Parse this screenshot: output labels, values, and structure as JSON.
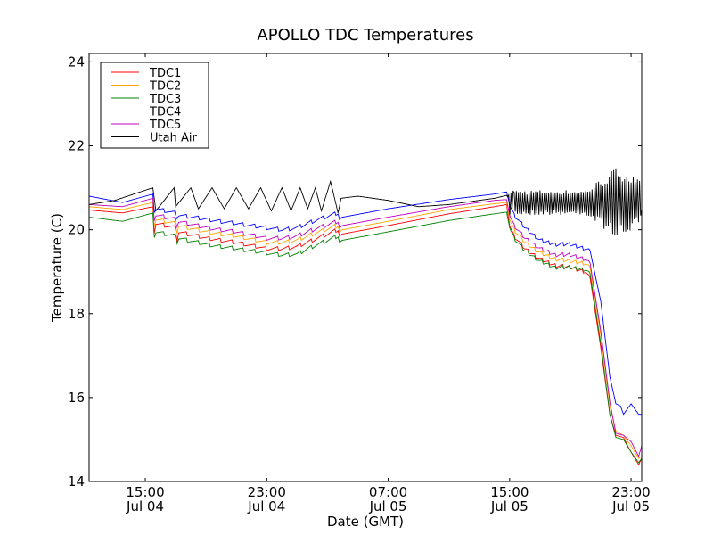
{
  "chart_data": {
    "type": "line",
    "title": "APOLLO TDC Temperatures",
    "xlabel": "Date (GMT)",
    "ylabel": "Temperature (C)",
    "x_units": "hours since Jul 04 00:00 GMT",
    "xlim": [
      11.3,
      47.7
    ],
    "ylim": [
      14,
      24.2
    ],
    "grid": false,
    "legend_position": "top-left",
    "xticks": [
      {
        "value": 15,
        "line1": "15:00",
        "line2": "Jul 04"
      },
      {
        "value": 23,
        "line1": "23:00",
        "line2": "Jul 04"
      },
      {
        "value": 31,
        "line1": "07:00",
        "line2": "Jul 05"
      },
      {
        "value": 39,
        "line1": "15:00",
        "line2": "Jul 05"
      },
      {
        "value": 47,
        "line1": "23:00",
        "line2": "Jul 05"
      }
    ],
    "yticks": [
      {
        "value": 14,
        "label": "14"
      },
      {
        "value": 16,
        "label": "16"
      },
      {
        "value": 18,
        "label": "18"
      },
      {
        "value": 20,
        "label": "20"
      },
      {
        "value": 22,
        "label": "22"
      },
      {
        "value": 24,
        "label": "24"
      }
    ],
    "series": [
      {
        "name": "TDC1",
        "color": "#ff0000",
        "offset": -0.12,
        "x": [
          11.3,
          13.5,
          15.5,
          15.6,
          15.7,
          17,
          17.1,
          17.2,
          19,
          21,
          23,
          24,
          25,
          26,
          27.7,
          27.8,
          28,
          31,
          35,
          38,
          38.8,
          39,
          39.3,
          40,
          41,
          42,
          43,
          44,
          44.3,
          45,
          45.6,
          46,
          46.5,
          47,
          47.5,
          47.7
        ],
        "y": [
          20.47,
          20.4,
          20.55,
          19.95,
          20.15,
          20.05,
          19.75,
          19.95,
          19.8,
          19.7,
          19.55,
          19.55,
          19.6,
          19.75,
          20.0,
          19.85,
          19.9,
          20.1,
          20.38,
          20.55,
          20.6,
          20.1,
          19.85,
          19.55,
          19.3,
          19.15,
          19.1,
          19.0,
          18.85,
          17.2,
          15.6,
          15.1,
          15.05,
          14.7,
          14.4,
          14.55
        ]
      },
      {
        "name": "TDC2",
        "color": "#ffa500",
        "offset": 0,
        "x": [
          11.3,
          13.5,
          15.5,
          15.6,
          15.7,
          17,
          17.1,
          17.2,
          19,
          21,
          23,
          24,
          25,
          26,
          27.7,
          27.8,
          28,
          31,
          35,
          38,
          38.8,
          39,
          39.3,
          40,
          41,
          42,
          43,
          44,
          44.3,
          45,
          45.6,
          46,
          46.5,
          47,
          47.5,
          47.7
        ],
        "y": [
          20.55,
          20.48,
          20.65,
          20.1,
          20.25,
          20.15,
          19.95,
          20.1,
          19.95,
          19.85,
          19.7,
          19.7,
          19.75,
          19.9,
          20.1,
          19.95,
          20.0,
          20.2,
          20.48,
          20.62,
          20.65,
          20.25,
          20.0,
          19.7,
          19.45,
          19.3,
          19.25,
          19.2,
          19.1,
          17.5,
          15.8,
          15.2,
          15.1,
          14.85,
          14.55,
          14.6
        ]
      },
      {
        "name": "TDC3",
        "color": "#008000",
        "offset": 0,
        "x": [
          11.3,
          13.5,
          15.5,
          15.6,
          15.7,
          17,
          17.1,
          17.2,
          19,
          21,
          23,
          24,
          25,
          26,
          27.7,
          27.8,
          28,
          31,
          35,
          38,
          38.8,
          39,
          39.3,
          40,
          41,
          42,
          43,
          44,
          44.3,
          45,
          45.6,
          46,
          46.5,
          47,
          47.5,
          47.7
        ],
        "y": [
          20.3,
          20.2,
          20.4,
          19.85,
          19.95,
          19.85,
          19.7,
          19.8,
          19.65,
          19.55,
          19.45,
          19.4,
          19.42,
          19.6,
          19.85,
          19.7,
          19.75,
          19.95,
          20.22,
          20.38,
          20.42,
          20.05,
          19.8,
          19.5,
          19.25,
          19.1,
          19.1,
          19.05,
          18.95,
          17.3,
          15.6,
          15.05,
          15.0,
          14.7,
          14.45,
          14.55
        ]
      },
      {
        "name": "TDC4",
        "color": "#0000ff",
        "offset": 0,
        "x": [
          11.3,
          13.5,
          15.5,
          15.6,
          15.7,
          17,
          17.1,
          17.2,
          19,
          21,
          23,
          24,
          25,
          26,
          27.7,
          27.8,
          28,
          31,
          35,
          38,
          38.8,
          39,
          39.3,
          40,
          41,
          42,
          43,
          44,
          44.3,
          45,
          45.6,
          46,
          46.3,
          46.5,
          47,
          47.5,
          47.7
        ],
        "y": [
          20.8,
          20.65,
          20.85,
          20.45,
          20.5,
          20.4,
          20.3,
          20.35,
          20.25,
          20.15,
          20.05,
          20.0,
          20.05,
          20.2,
          20.4,
          20.25,
          20.3,
          20.5,
          20.72,
          20.85,
          20.9,
          20.6,
          20.35,
          20.05,
          19.75,
          19.65,
          19.65,
          19.55,
          19.5,
          18.3,
          16.5,
          15.85,
          15.8,
          15.6,
          15.85,
          15.6,
          15.6
        ]
      },
      {
        "name": "TDC5",
        "color": "#c000c0",
        "offset": 0,
        "x": [
          11.3,
          13.5,
          15.5,
          15.6,
          15.7,
          17,
          17.1,
          17.2,
          19,
          21,
          23,
          24,
          25,
          26,
          27.7,
          27.8,
          28,
          31,
          35,
          38,
          38.8,
          39,
          39.3,
          40,
          41,
          42,
          43,
          44,
          44.3,
          45,
          45.6,
          46,
          46.5,
          47,
          47.5,
          47.7
        ],
        "y": [
          20.6,
          20.55,
          20.75,
          20.25,
          20.35,
          20.25,
          20.1,
          20.2,
          20.05,
          19.95,
          19.8,
          19.8,
          19.85,
          20.0,
          20.2,
          20.05,
          20.1,
          20.3,
          20.55,
          20.7,
          20.72,
          20.35,
          20.1,
          19.8,
          19.55,
          19.4,
          19.4,
          19.3,
          19.2,
          17.6,
          15.9,
          15.15,
          15.1,
          14.95,
          14.6,
          14.85
        ]
      },
      {
        "name": "Utah Air",
        "color": "#000000",
        "offset": 0,
        "x": [
          11.3,
          13,
          15.5,
          15.7,
          16.9,
          17.0,
          18.0,
          18.5,
          19.4,
          20.2,
          21.0,
          21.8,
          22.6,
          23.3,
          24.0,
          24.6,
          25.2,
          25.7,
          26.2,
          26.6,
          27.2,
          27.7,
          27.9,
          29,
          31,
          33,
          35,
          38,
          38.8,
          39.3,
          40,
          41,
          42,
          43,
          44,
          45,
          46,
          47,
          47.7
        ],
        "y": [
          20.6,
          20.7,
          21.0,
          20.45,
          21.0,
          20.55,
          21.0,
          20.5,
          21.0,
          20.5,
          21.0,
          20.5,
          21.0,
          20.45,
          21.0,
          20.45,
          21.0,
          20.5,
          21.0,
          20.45,
          21.15,
          20.4,
          20.75,
          20.8,
          20.7,
          20.55,
          20.6,
          20.75,
          20.82,
          20.55,
          21.05,
          20.45,
          20.9,
          20.5,
          21.0,
          20.55,
          21.6,
          20.45,
          20.5
        ]
      }
    ],
    "air_oscillation": {
      "start_hour": 38.9,
      "end_hour": 47.7,
      "amplitude_c": 0.3,
      "peak_hour": 46.2,
      "peak_amplitude_c": 0.9
    }
  }
}
